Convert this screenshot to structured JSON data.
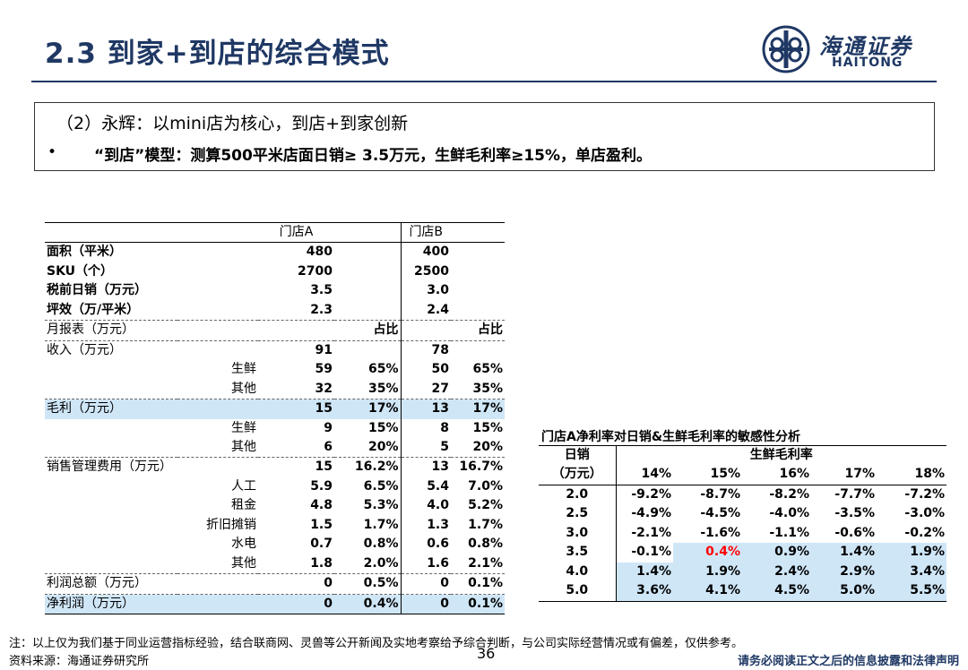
{
  "header": {
    "title": "2.3 到家+到店的综合模式",
    "logo_cn": "海通证券",
    "logo_en": "HAITONG"
  },
  "summary": {
    "heading": "（2）永辉：以mini店为核心，到店+到家创新",
    "bullet": "•",
    "line": "“到店”模型：测算500平米店面日销≥ 3.5万元，生鲜毛利率≥15%，单店盈利。"
  },
  "store_table": {
    "header": [
      "",
      "",
      "门店A",
      "",
      "门店B",
      ""
    ],
    "rows": [
      [
        "面积（平米）",
        "",
        "480",
        "",
        "400",
        ""
      ],
      [
        "SKU（个）",
        "",
        "2700",
        "",
        "2500",
        ""
      ],
      [
        "税前日销（万元）",
        "",
        "3.5",
        "",
        "3.0",
        ""
      ],
      [
        "坪效（万/平米）",
        "",
        "2.3",
        "",
        "2.4",
        ""
      ],
      [
        "月报表（万元）",
        "",
        "",
        "占比",
        "",
        "占比"
      ],
      [
        "收入（万元）",
        "",
        "91",
        "",
        "78",
        ""
      ],
      [
        "",
        "生鲜",
        "59",
        "65%",
        "50",
        "65%"
      ],
      [
        "",
        "其他",
        "32",
        "35%",
        "27",
        "35%"
      ],
      [
        "毛利（万元）",
        "",
        "15",
        "17%",
        "13",
        "17%"
      ],
      [
        "",
        "生鲜",
        "9",
        "15%",
        "8",
        "15%"
      ],
      [
        "",
        "其他",
        "6",
        "20%",
        "5",
        "20%"
      ],
      [
        "销售管理费用（万元）",
        "",
        "15",
        "16.2%",
        "13",
        "16.7%"
      ],
      [
        "",
        "人工",
        "5.9",
        "6.5%",
        "5.4",
        "7.0%"
      ],
      [
        "",
        "租金",
        "4.8",
        "5.3%",
        "4.0",
        "5.2%"
      ],
      [
        "",
        "折旧摊销",
        "1.5",
        "1.7%",
        "1.3",
        "1.7%"
      ],
      [
        "",
        "水电",
        "0.7",
        "0.8%",
        "0.6",
        "0.8%"
      ],
      [
        "",
        "其他",
        "1.8",
        "2.0%",
        "1.6",
        "2.1%"
      ],
      [
        "利润总额（万元）",
        "",
        "0",
        "0.5%",
        "0",
        "0.1%"
      ],
      [
        "净利润（万元）",
        "",
        "0",
        "0.4%",
        "0",
        "0.1%"
      ]
    ]
  },
  "sensitivity": {
    "title": "门店A净利率对日销&生鲜毛利率的敏感性分析",
    "row_header_1": "日销",
    "row_header_2": "（万元）",
    "col_group": "生鲜毛利率",
    "columns": [
      "14%",
      "15%",
      "16%",
      "17%",
      "18%"
    ],
    "rows": [
      {
        "label": "2.0",
        "values": [
          "-9.2%",
          "-8.7%",
          "-8.2%",
          "-7.7%",
          "-7.2%"
        ]
      },
      {
        "label": "2.5",
        "values": [
          "-4.9%",
          "-4.5%",
          "-4.0%",
          "-3.5%",
          "-3.0%"
        ]
      },
      {
        "label": "3.0",
        "values": [
          "-2.1%",
          "-1.6%",
          "-1.1%",
          "-0.6%",
          "-0.2%"
        ]
      },
      {
        "label": "3.5",
        "values": [
          "-0.1%",
          "0.4%",
          "0.9%",
          "1.4%",
          "1.9%"
        ]
      },
      {
        "label": "4.0",
        "values": [
          "1.4%",
          "1.9%",
          "2.4%",
          "2.9%",
          "3.4%"
        ]
      },
      {
        "label": "5.0",
        "values": [
          "3.6%",
          "4.1%",
          "4.5%",
          "5.0%",
          "5.5%"
        ]
      }
    ],
    "highlight_color": "#cfe6f7",
    "emphasis_color": "#ff0000"
  },
  "footer": {
    "note": "注：以上仅为我们基于同业运营指标经验，结合联商网、灵兽等公开新闻及实地考察给予综合判断，与公司实际经营情况或有偏差，仅供参考。",
    "source": "资料来源：海通证券研究所",
    "page_number": "36",
    "disclaimer": "请务必阅读正文之后的信息披露和法律声明"
  }
}
